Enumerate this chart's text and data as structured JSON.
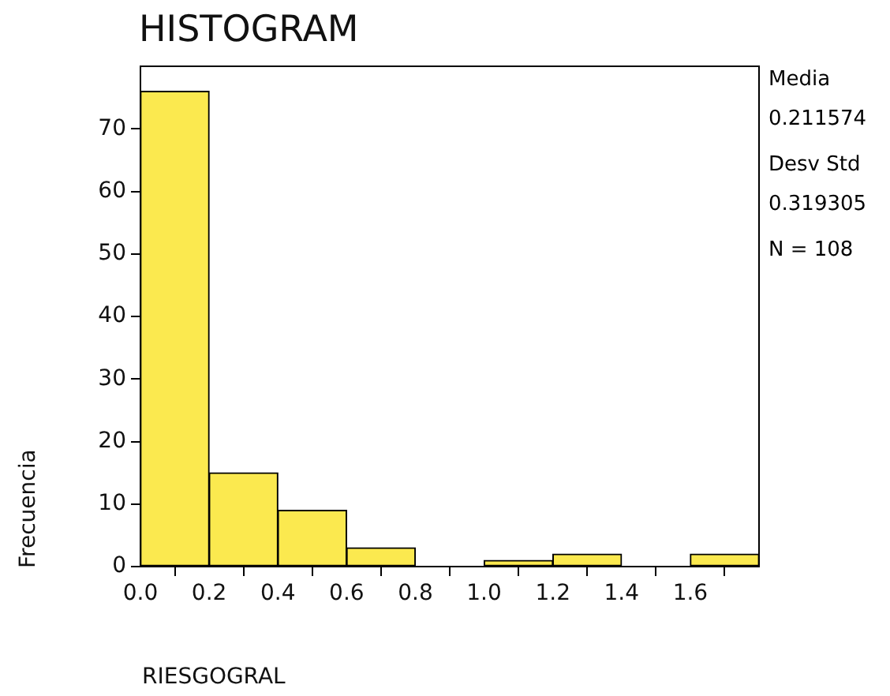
{
  "chart_data": {
    "type": "histogram",
    "title": "HISTOGRAM",
    "xlabel": "RIESGOGRAL",
    "ylabel": "Frecuencia",
    "bins": [
      0,
      0.2,
      0.4,
      0.6,
      0.8,
      1.0,
      1.2,
      1.4,
      1.6,
      1.8
    ],
    "values": [
      76,
      15,
      9,
      3,
      0,
      1,
      2,
      0,
      2
    ],
    "color": "#fbe94f",
    "xlim": [
      0,
      1.8
    ],
    "xticks": [
      {
        "value": 0,
        "label": "0.0"
      },
      {
        "value": 0.2,
        "label": "0.2"
      },
      {
        "value": 0.4,
        "label": "0.4"
      },
      {
        "value": 0.6,
        "label": "0.6"
      },
      {
        "value": 0.8,
        "label": "0.8"
      },
      {
        "value": 1.0,
        "label": "1.0"
      },
      {
        "value": 1.2,
        "label": "1.2"
      },
      {
        "value": 1.4,
        "label": "1.4"
      },
      {
        "value": 1.6,
        "label": "1.6"
      }
    ],
    "ylim": [
      0,
      80
    ],
    "yticks": [
      0,
      10,
      20,
      30,
      40,
      50,
      60,
      70
    ],
    "grid": false,
    "legend": false,
    "annotations": [
      "Media",
      "0.211574",
      "Desv Std",
      "0.319305",
      "N = 108"
    ]
  }
}
